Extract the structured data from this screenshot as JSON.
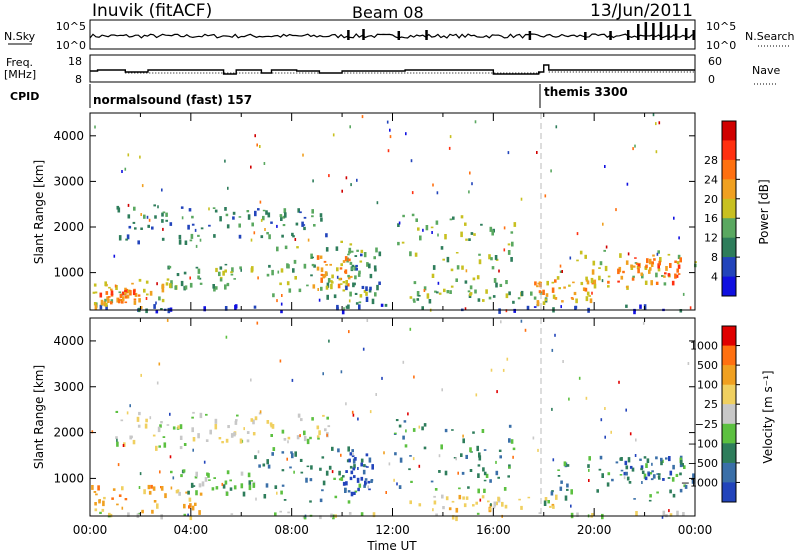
{
  "header": {
    "radar": "Inuvik (fitACF)",
    "beam": "Beam 08",
    "date": "13/Jun/2011"
  },
  "noise_panel": {
    "left_label": "N.Sky",
    "left_ticks": [
      "10^5",
      "10^0"
    ],
    "right_label": "N.Search",
    "right_ticks": [
      "10^5",
      "10^0"
    ]
  },
  "freq_panel": {
    "left_label_1": "Freq.",
    "left_label_2": "[MHz]",
    "left_ticks": [
      "18",
      "8"
    ],
    "right_label": "Nave",
    "right_ticks": [
      "60",
      "0"
    ]
  },
  "cpid": {
    "label": "CPID",
    "segments": [
      "normalsound (fast) 157",
      "themis 3300"
    ],
    "change_time": "18:00"
  },
  "colors": {
    "power_scale": [
      "#1010e0",
      "#2244bb",
      "#2e7d5b",
      "#5aa860",
      "#c8c020",
      "#f0a020",
      "#ff7010",
      "#ff3010",
      "#d00000"
    ],
    "velocity_scale": [
      "#2244bb",
      "#3a6fa8",
      "#2e7d5b",
      "#5cc040",
      "#c8c8c8",
      "#f0d060",
      "#f0a020",
      "#ff7010",
      "#e00000"
    ]
  },
  "chart_data": [
    {
      "type": "heatmap",
      "title": "Power",
      "xlabel": "Time UT",
      "ylabel": "Slant Range [km]",
      "x_ticks": [
        "00:00",
        "04:00",
        "08:00",
        "12:00",
        "16:00",
        "20:00",
        "00:00"
      ],
      "y_ticks": [
        1000,
        2000,
        3000,
        4000
      ],
      "xlim": [
        "00:00",
        "24:00"
      ],
      "ylim": [
        180,
        4500
      ],
      "colorbar": {
        "label": "Power [dB]",
        "ticks": [
          4,
          8,
          12,
          16,
          20,
          24,
          28
        ]
      },
      "echo_regions": [
        {
          "t0": 0.0,
          "t1": 24.0,
          "r0": 180,
          "r1": 320,
          "level": 1
        },
        {
          "t0": 0.0,
          "t1": 3.5,
          "r0": 300,
          "r1": 900,
          "level": 4
        },
        {
          "t0": 0.3,
          "t1": 2.0,
          "r0": 350,
          "r1": 650,
          "level": 6
        },
        {
          "t0": 1.0,
          "t1": 5.5,
          "r0": 1700,
          "r1": 2500,
          "level": 2
        },
        {
          "t0": 3.0,
          "t1": 6.5,
          "r0": 700,
          "r1": 1200,
          "level": 3
        },
        {
          "t0": 5.5,
          "t1": 9.5,
          "r0": 1800,
          "r1": 2450,
          "level": 2
        },
        {
          "t0": 7.0,
          "t1": 11.0,
          "r0": 500,
          "r1": 1700,
          "level": 3
        },
        {
          "t0": 8.8,
          "t1": 10.5,
          "r0": 700,
          "r1": 1400,
          "level": 5
        },
        {
          "t0": 10.0,
          "t1": 11.5,
          "r0": 350,
          "r1": 1600,
          "level": 2
        },
        {
          "t0": 12.0,
          "t1": 17.0,
          "r0": 700,
          "r1": 2300,
          "level": 3
        },
        {
          "t0": 12.5,
          "t1": 18.5,
          "r0": 380,
          "r1": 650,
          "level": 3
        },
        {
          "t0": 17.5,
          "t1": 20.0,
          "r0": 350,
          "r1": 900,
          "level": 5
        },
        {
          "t0": 18.5,
          "t1": 24.0,
          "r0": 700,
          "r1": 1500,
          "level": 4
        },
        {
          "t0": 20.5,
          "t1": 23.5,
          "r0": 800,
          "r1": 1400,
          "level": 6
        }
      ]
    },
    {
      "type": "heatmap",
      "title": "Velocity",
      "xlabel": "Time UT",
      "ylabel": "Slant Range [km]",
      "x_ticks": [
        "00:00",
        "04:00",
        "08:00",
        "12:00",
        "16:00",
        "20:00",
        "00:00"
      ],
      "y_ticks": [
        1000,
        2000,
        3000,
        4000
      ],
      "xlim": [
        "00:00",
        "24:00"
      ],
      "ylim": [
        180,
        4500
      ],
      "colorbar": {
        "label": "Velocity [m s⁻¹]",
        "ticks": [
          "1000",
          "500",
          "100",
          "25",
          "−25",
          "−100",
          "−500",
          "−1000"
        ]
      },
      "echo_regions": [
        {
          "t0": 0.0,
          "t1": 24.0,
          "r0": 180,
          "r1": 300,
          "level": 4
        },
        {
          "t0": 0.0,
          "t1": 4.5,
          "r0": 300,
          "r1": 900,
          "level": 6
        },
        {
          "t0": 1.0,
          "t1": 5.5,
          "r0": 1700,
          "r1": 2500,
          "level": 4
        },
        {
          "t0": 3.0,
          "t1": 6.5,
          "r0": 700,
          "r1": 1200,
          "level": 3
        },
        {
          "t0": 5.5,
          "t1": 9.5,
          "r0": 1800,
          "r1": 2450,
          "level": 4
        },
        {
          "t0": 6.5,
          "t1": 11.0,
          "r0": 500,
          "r1": 1700,
          "level": 2
        },
        {
          "t0": 10.0,
          "t1": 11.2,
          "r0": 700,
          "r1": 1600,
          "level": 0
        },
        {
          "t0": 12.0,
          "t1": 17.0,
          "r0": 700,
          "r1": 2300,
          "level": 2
        },
        {
          "t0": 12.5,
          "t1": 18.5,
          "r0": 350,
          "r1": 650,
          "level": 5
        },
        {
          "t0": 18.0,
          "t1": 24.0,
          "r0": 500,
          "r1": 1500,
          "level": 2
        },
        {
          "t0": 21.0,
          "t1": 23.5,
          "r0": 1000,
          "r1": 1500,
          "level": 1
        }
      ]
    }
  ]
}
